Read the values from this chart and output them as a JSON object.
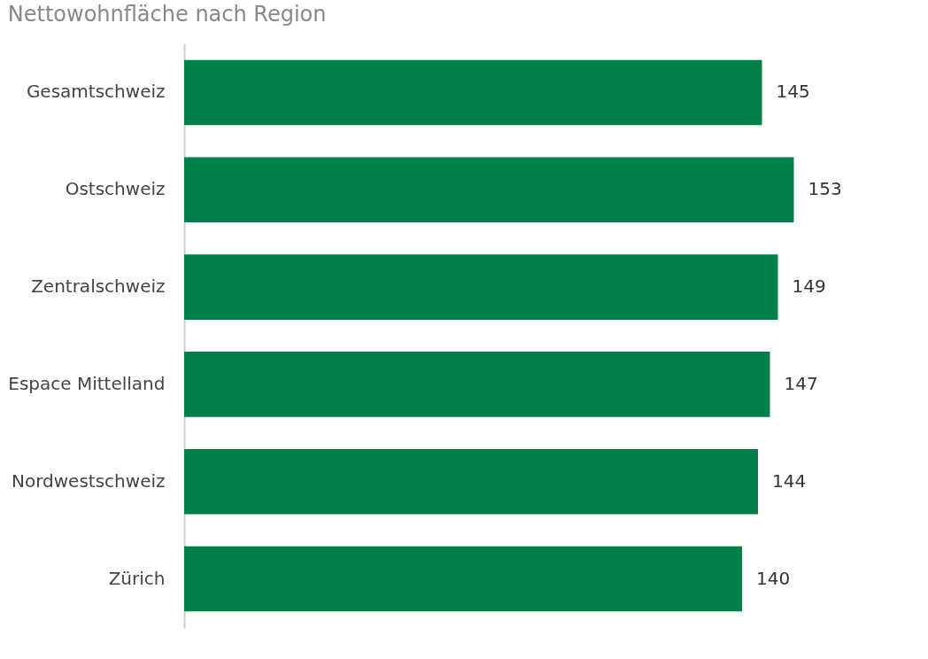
{
  "chart_data": {
    "type": "bar",
    "orientation": "horizontal",
    "title": "Nettowohnfläche nach Region",
    "categories": [
      "Gesamtschweiz",
      "Ostschweiz",
      "Zentralschweiz",
      "Espace Mittelland",
      "Nordwestschweiz",
      "Zürich"
    ],
    "values": [
      145,
      153,
      149,
      147,
      144,
      140
    ],
    "color": "#018049",
    "data_labels": true,
    "tick_labels": "y"
  }
}
